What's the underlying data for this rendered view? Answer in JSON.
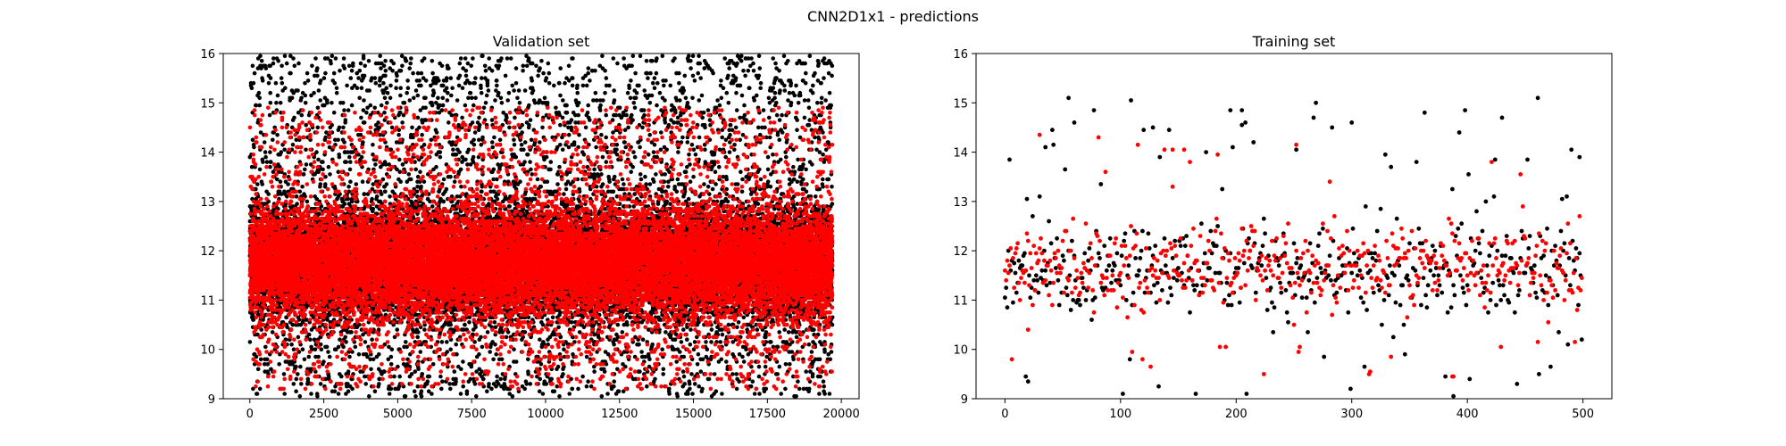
{
  "figure": {
    "suptitle": "CNN2D1x1 - predictions"
  },
  "chart_data": [
    {
      "type": "scatter",
      "title": "Validation set",
      "xlabel": "",
      "ylabel": "",
      "xlim": [
        -900,
        20600
      ],
      "ylim": [
        9,
        16
      ],
      "xticks": [
        0,
        2500,
        5000,
        7500,
        10000,
        12500,
        15000,
        17500,
        20000
      ],
      "yticks": [
        9,
        10,
        11,
        12,
        13,
        14,
        15,
        16
      ],
      "grid": false,
      "legend": "none",
      "n_points": 19700,
      "series": [
        {
          "color": "#000000",
          "values_summary": "dense band 11.1-12.6, spread 9.1-15.9",
          "distribution": {
            "center": 11.75,
            "core_sd": 0.55,
            "outlier_rate": 0.22,
            "min": 9.05,
            "max": 15.95
          }
        },
        {
          "color": "#ff0000",
          "values_summary": "dense band 11.0-12.8, spread 9.2-14.9",
          "distribution": {
            "center": 11.75,
            "core_sd": 0.5,
            "outlier_rate": 0.13,
            "min": 9.2,
            "max": 14.9
          }
        }
      ]
    },
    {
      "type": "scatter",
      "title": "Training set",
      "xlabel": "",
      "ylabel": "",
      "xlim": [
        -25,
        525
      ],
      "ylim": [
        9,
        16
      ],
      "xticks": [
        0,
        100,
        200,
        300,
        400,
        500
      ],
      "yticks": [
        9,
        10,
        11,
        12,
        13,
        14,
        15,
        16
      ],
      "grid": false,
      "legend": "none",
      "n_points": 500,
      "series": [
        {
          "color": "#000000",
          "distribution": {
            "center": 11.6,
            "core_sd": 0.45,
            "outlier_rate": 0.18,
            "min": 9.05,
            "max": 15.1
          },
          "notable_points": [
            [
              18,
              9.45
            ],
            [
              55,
              15.1
            ],
            [
              60,
              14.6
            ],
            [
              128,
              14.5
            ],
            [
              195,
              14.85
            ],
            [
              205,
              14.85
            ],
            [
              300,
              14.6
            ],
            [
              430,
              14.7
            ],
            [
              388,
              9.05
            ],
            [
              35,
              14.1
            ],
            [
              252,
              14.05
            ],
            [
              497,
              13.9
            ]
          ]
        },
        {
          "color": "#ff0000",
          "distribution": {
            "center": 11.65,
            "core_sd": 0.4,
            "outlier_rate": 0.12,
            "min": 9.4,
            "max": 14.35
          },
          "notable_points": [
            [
              30,
              14.35
            ],
            [
              155,
              14.05
            ],
            [
              252,
              14.15
            ],
            [
              387,
              9.45
            ],
            [
              20,
              10.4
            ],
            [
              255,
              10.05
            ],
            [
              145,
              13.3
            ]
          ]
        }
      ]
    }
  ]
}
